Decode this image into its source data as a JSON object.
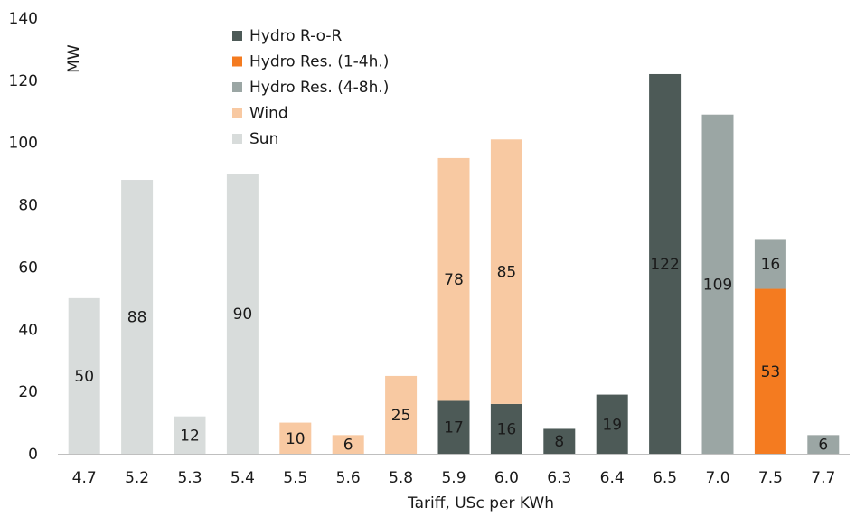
{
  "chart_data": {
    "type": "bar",
    "stacked": true,
    "title": "",
    "xlabel": "Tariff, USc per KWh",
    "ylabel": "MW",
    "ylim": [
      0,
      140
    ],
    "yticks": [
      "0",
      "20",
      "40",
      "60",
      "80",
      "100",
      "120",
      "140"
    ],
    "grid": false,
    "legend_position": "top-left",
    "categories": [
      "4.7",
      "5.2",
      "5.3",
      "5.4",
      "5.5",
      "5.6",
      "5.8",
      "5.9",
      "6.0",
      "6.3",
      "6.4",
      "6.5",
      "7.0",
      "7.5",
      "7.7"
    ],
    "series": [
      {
        "name": "Hydro R-o-R",
        "color": "#4d5a57",
        "values": [
          0,
          0,
          0,
          0,
          0,
          0,
          0,
          17,
          16,
          8,
          19,
          122,
          0,
          0,
          0
        ]
      },
      {
        "name": "Hydro Res. (1-4h.)",
        "color": "#f47b20",
        "values": [
          0,
          0,
          0,
          0,
          0,
          0,
          0,
          0,
          0,
          0,
          0,
          0,
          0,
          53,
          0
        ]
      },
      {
        "name": "Hydro Res. (4-8h.)",
        "color": "#9ba6a4",
        "values": [
          0,
          0,
          0,
          0,
          0,
          0,
          0,
          0,
          0,
          0,
          0,
          0,
          109,
          16,
          6
        ]
      },
      {
        "name": "Wind",
        "color": "#f8c9a2",
        "values": [
          0,
          0,
          0,
          0,
          10,
          6,
          25,
          78,
          85,
          0,
          0,
          0,
          0,
          0,
          0
        ]
      },
      {
        "name": "Sun",
        "color": "#d8dcdb",
        "values": [
          50,
          88,
          12,
          90,
          0,
          0,
          0,
          0,
          0,
          0,
          0,
          0,
          0,
          0,
          0
        ]
      }
    ]
  }
}
